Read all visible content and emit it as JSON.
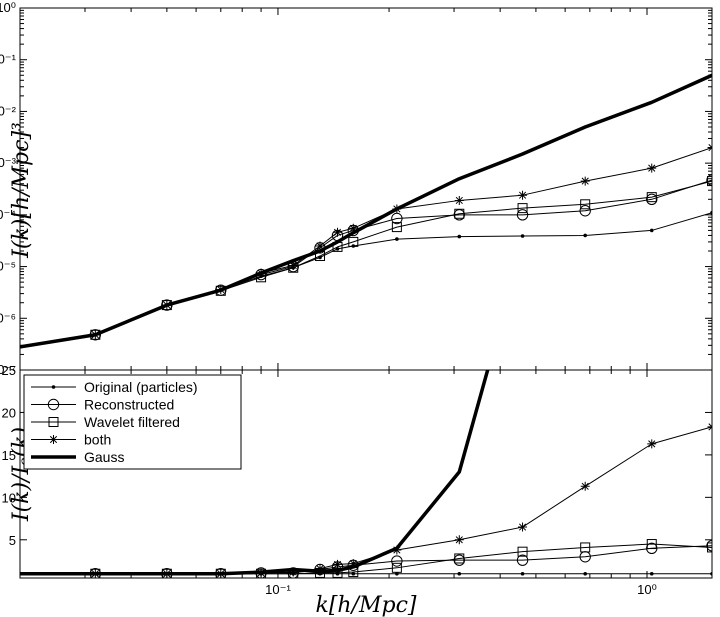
{
  "chart_data": [
    {
      "type": "line",
      "panel": "top",
      "ylabel": "I(k)[h/Mpc]³",
      "yscale": "log",
      "xscale": "log",
      "xlim": [
        0.02,
        1.5
      ],
      "ylim": [
        1e-07,
        1
      ],
      "yticks": [
        "10⁰",
        "10⁻¹",
        "10⁻²",
        "10⁻³",
        "10⁻⁴",
        "10⁻⁵",
        "10⁻⁶",
        "10⁻⁷"
      ],
      "series": [
        {
          "name": "Original (particles)",
          "marker": "dot",
          "width": 1,
          "x": [
            0.02,
            0.032,
            0.05,
            0.07,
            0.09,
            0.11,
            0.13,
            0.145,
            0.16,
            0.21,
            0.31,
            0.46,
            0.68,
            1.03,
            1.5
          ],
          "y": [
            2.8e-07,
            4.8e-07,
            1.8e-06,
            3.5e-06,
            6.5e-06,
            9.5e-06,
            1.5e-05,
            2.2e-05,
            2.5e-05,
            3.4e-05,
            3.8e-05,
            3.9e-05,
            4e-05,
            5e-05,
            0.00011
          ]
        },
        {
          "name": "Reconstructed",
          "marker": "circle",
          "width": 1,
          "x": [
            0.02,
            0.032,
            0.05,
            0.07,
            0.09,
            0.11,
            0.13,
            0.145,
            0.16,
            0.21,
            0.31,
            0.46,
            0.68,
            1.03,
            1.5
          ],
          "y": [
            2.8e-07,
            4.8e-07,
            1.8e-06,
            3.5e-06,
            7e-06,
            1e-05,
            2.3e-05,
            4e-05,
            5e-05,
            8.5e-05,
            0.0001,
            0.0001,
            0.00012,
            0.0002,
            0.00047
          ]
        },
        {
          "name": "Wavelet filtered",
          "marker": "square",
          "width": 1,
          "x": [
            0.02,
            0.032,
            0.05,
            0.07,
            0.09,
            0.11,
            0.13,
            0.145,
            0.16,
            0.21,
            0.31,
            0.46,
            0.68,
            1.03,
            1.5
          ],
          "y": [
            2.8e-07,
            4.8e-07,
            1.8e-06,
            3.4e-06,
            6.2e-06,
            9.5e-06,
            1.6e-05,
            2.4e-05,
            3e-05,
            5.8e-05,
            0.000105,
            0.000135,
            0.00016,
            0.00022,
            0.00045
          ]
        },
        {
          "name": "both",
          "marker": "star",
          "width": 1,
          "x": [
            0.02,
            0.032,
            0.05,
            0.07,
            0.09,
            0.11,
            0.13,
            0.145,
            0.16,
            0.21,
            0.31,
            0.46,
            0.68,
            1.03,
            1.5
          ],
          "y": [
            2.8e-07,
            4.8e-07,
            1.8e-06,
            3.6e-06,
            7.5e-06,
            1.05e-05,
            2.5e-05,
            4.6e-05,
            5.5e-05,
            0.00013,
            0.00019,
            0.00024,
            0.00045,
            0.0008,
            0.002
          ]
        },
        {
          "name": "Gauss",
          "marker": "none",
          "width": 3.5,
          "x": [
            0.02,
            0.032,
            0.05,
            0.07,
            0.09,
            0.11,
            0.13,
            0.145,
            0.16,
            0.21,
            0.31,
            0.46,
            0.68,
            1.03,
            1.5
          ],
          "y": [
            2.8e-07,
            4.8e-07,
            1.8e-06,
            3.5e-06,
            7.5e-06,
            1.3e-05,
            2e-05,
            3e-05,
            4.5e-05,
            0.00013,
            0.0005,
            0.0015,
            0.005,
            0.015,
            0.05
          ]
        }
      ]
    },
    {
      "type": "line",
      "panel": "bottom",
      "xlabel": "k[h/Mpc]",
      "ylabel": "I(k)/Iₒ(k)",
      "xscale": "log",
      "xlim": [
        0.02,
        1.5
      ],
      "ylim": [
        0.5,
        25
      ],
      "yticks": [
        5,
        10,
        15,
        20,
        25
      ],
      "xticks": [
        {
          "value": 0.1,
          "label": "10⁻¹"
        },
        {
          "value": 1,
          "label": "10⁰"
        }
      ],
      "legend": "top-left",
      "series": [
        {
          "name": "Original (particles)",
          "marker": "dot",
          "width": 1,
          "x": [
            0.02,
            0.032,
            0.05,
            0.07,
            0.09,
            0.11,
            0.13,
            0.145,
            0.16,
            0.21,
            0.31,
            0.46,
            0.68,
            1.03,
            1.5
          ],
          "y": [
            1,
            1,
            1,
            1,
            1,
            1,
            1,
            1,
            1,
            1,
            1,
            1,
            1,
            1,
            1
          ]
        },
        {
          "name": "Reconstructed",
          "marker": "circle",
          "width": 1,
          "x": [
            0.02,
            0.032,
            0.05,
            0.07,
            0.09,
            0.11,
            0.13,
            0.145,
            0.16,
            0.21,
            0.31,
            0.46,
            0.68,
            1.03,
            1.5
          ],
          "y": [
            1,
            1,
            1,
            1,
            1.1,
            1.1,
            1.5,
            1.8,
            2.0,
            2.5,
            2.6,
            2.6,
            3.0,
            4.0,
            4.3
          ]
        },
        {
          "name": "Wavelet filtered",
          "marker": "square",
          "width": 1,
          "x": [
            0.02,
            0.032,
            0.05,
            0.07,
            0.09,
            0.11,
            0.13,
            0.145,
            0.16,
            0.21,
            0.31,
            0.46,
            0.68,
            1.03,
            1.5
          ],
          "y": [
            1,
            1,
            1,
            1,
            1.0,
            1.0,
            1.1,
            1.1,
            1.2,
            1.7,
            2.8,
            3.6,
            4.1,
            4.5,
            4.1
          ]
        },
        {
          "name": "both",
          "marker": "star",
          "width": 1,
          "x": [
            0.02,
            0.032,
            0.05,
            0.07,
            0.09,
            0.11,
            0.13,
            0.145,
            0.16,
            0.21,
            0.31,
            0.46,
            0.68,
            1.03,
            1.5
          ],
          "y": [
            1,
            1,
            1,
            1,
            1.1,
            1.2,
            1.6,
            2.1,
            2.2,
            3.8,
            5.0,
            6.5,
            11.3,
            16.3,
            18.3
          ]
        },
        {
          "name": "Gauss",
          "marker": "none",
          "width": 3.5,
          "x": [
            0.02,
            0.032,
            0.05,
            0.07,
            0.09,
            0.11,
            0.13,
            0.145,
            0.16,
            0.21,
            0.31,
            0.37
          ],
          "y": [
            1,
            1,
            1,
            1,
            1.2,
            1.5,
            1.3,
            1.4,
            1.8,
            4.0,
            13.0,
            25.0
          ]
        }
      ]
    }
  ]
}
